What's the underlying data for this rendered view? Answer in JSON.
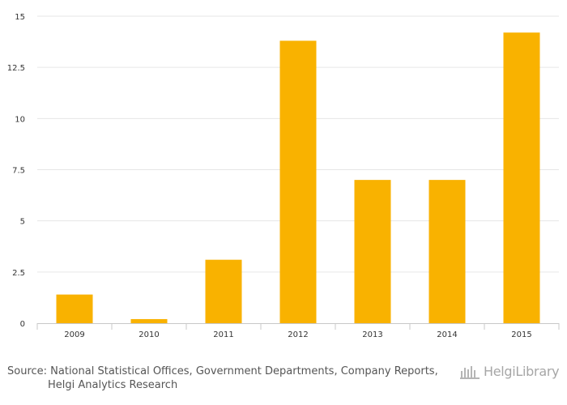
{
  "chart_data": {
    "type": "bar",
    "categories": [
      "2009",
      "2010",
      "2011",
      "2012",
      "2013",
      "2014",
      "2015"
    ],
    "values": [
      1.4,
      0.2,
      3.1,
      13.8,
      7.0,
      7.0,
      14.2
    ],
    "ylim": [
      0,
      15
    ],
    "yticks": [
      0,
      2.5,
      5,
      7.5,
      10,
      12.5,
      15
    ],
    "ytick_labels": [
      "0",
      "2.5",
      "5",
      "7.5",
      "10",
      "12.5",
      "15"
    ],
    "grid": true,
    "bar_color": "#f9b200",
    "title": "",
    "xlabel": "",
    "ylabel": ""
  },
  "footer": {
    "source_line1": "Source: National Statistical Offices, Government Departments, Company Reports,",
    "source_line2": "Helgi Analytics Research"
  },
  "brand": {
    "name": "HelgiLibrary"
  }
}
